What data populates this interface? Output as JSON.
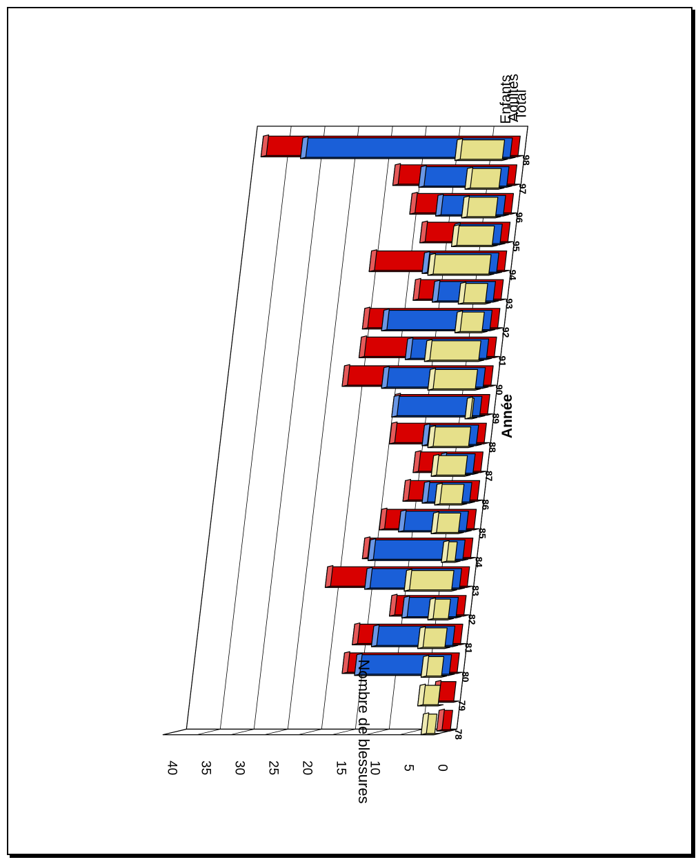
{
  "chart_data": {
    "type": "bar",
    "title": "",
    "xlabel": "Année",
    "ylabel": "Nombre de blessures",
    "ylim": [
      0,
      40
    ],
    "yticks": [
      0,
      5,
      10,
      15,
      20,
      25,
      30,
      35,
      40
    ],
    "categories": [
      "78",
      "79",
      "80",
      "81",
      "82",
      "83",
      "84",
      "85",
      "86",
      "87",
      "88",
      "89",
      "90",
      "91",
      "92",
      "93",
      "94",
      "95",
      "96",
      "97",
      "98"
    ],
    "series": [
      {
        "name": "Enfants",
        "color": "#e6e08a",
        "values": [
          2,
          3,
          3,
          4,
          3,
          7,
          2,
          4,
          4,
          5,
          6,
          1,
          7,
          8,
          4,
          4,
          9,
          6,
          5,
          5,
          7
        ]
      },
      {
        "name": "Adultes",
        "color": "#1a5fd8",
        "values": [
          0,
          0,
          14,
          12,
          8,
          14,
          14,
          10,
          7,
          5,
          8,
          13,
          15,
          12,
          16,
          9,
          11,
          7,
          10,
          13,
          31
        ]
      },
      {
        "name": "Total",
        "color": "#d80000",
        "values": [
          2,
          3,
          17,
          16,
          11,
          21,
          16,
          14,
          11,
          10,
          14,
          14,
          22,
          20,
          20,
          13,
          20,
          13,
          15,
          18,
          38
        ]
      }
    ],
    "grid": true,
    "legend": "series labels along depth axis"
  }
}
